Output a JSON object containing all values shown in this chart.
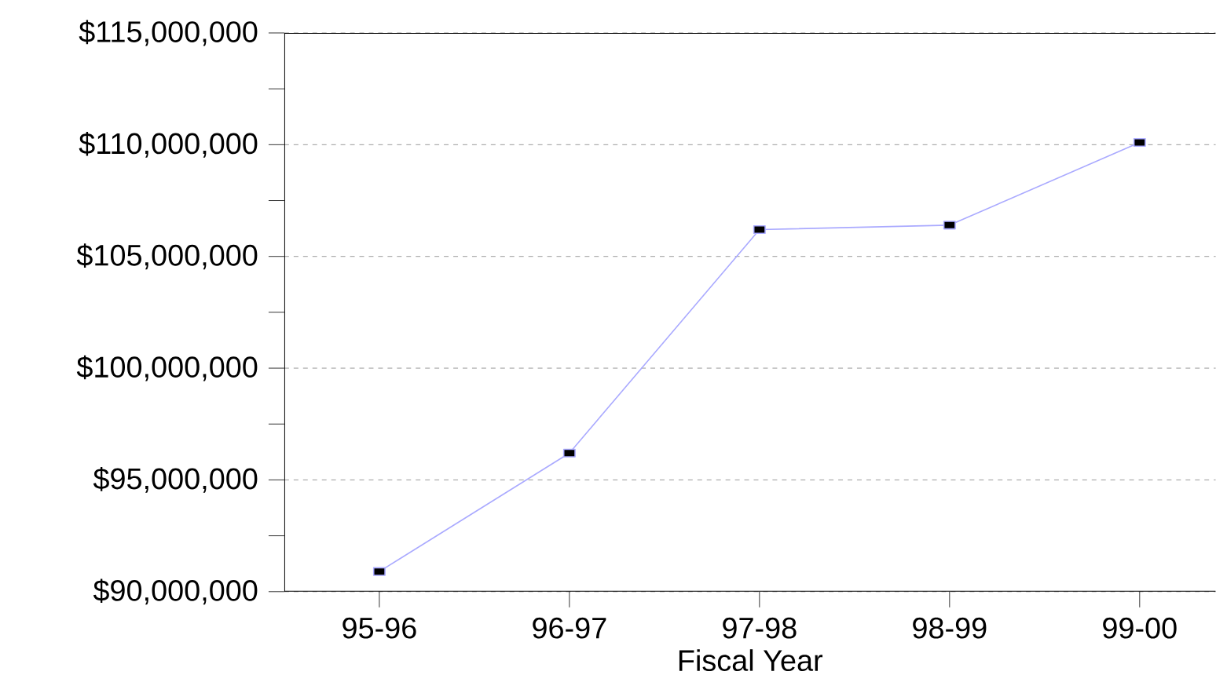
{
  "chart_data": {
    "type": "line",
    "xlabel": "Fiscal Year",
    "categories": [
      "95-96",
      "96-97",
      "97-98",
      "98-99",
      "99-00"
    ],
    "values": [
      90900000,
      96200000,
      106200000,
      106400000,
      110100000
    ],
    "color": "#aaaaff",
    "marker": "square",
    "grid": "y",
    "ylim": [
      90000000,
      115000000
    ],
    "yticks": [
      {
        "value": 90000000,
        "label": "$90,000,000"
      },
      {
        "value": 95000000,
        "label": "$95,000,000"
      },
      {
        "value": 100000000,
        "label": "$100,000,000"
      },
      {
        "value": 105000000,
        "label": "$105,000,000"
      },
      {
        "value": 110000000,
        "label": "$110,000,000"
      },
      {
        "value": 115000000,
        "label": "$115,000,000"
      }
    ]
  }
}
